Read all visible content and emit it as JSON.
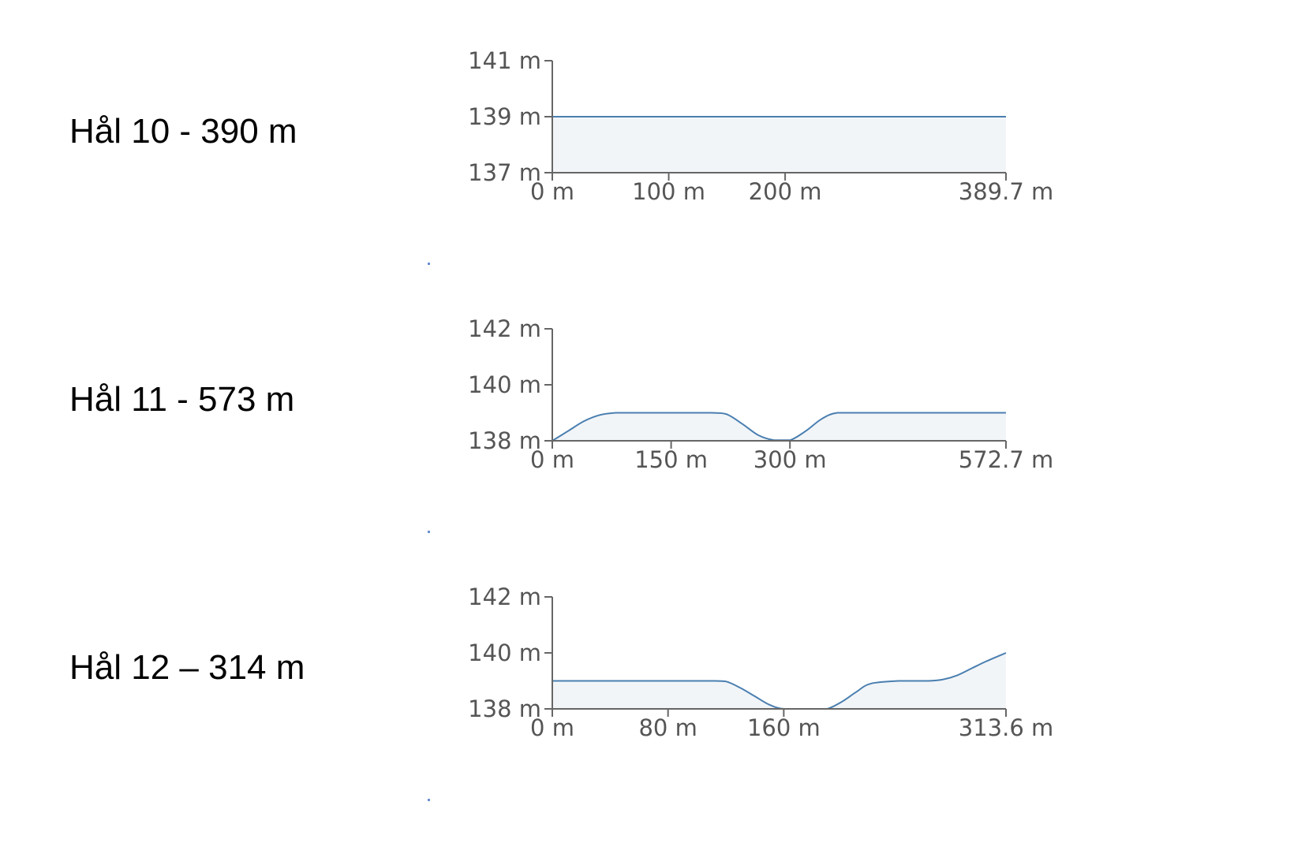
{
  "holes": [
    {
      "label": "Hål 10 - 390 m",
      "chart_data": {
        "type": "area",
        "x": [
          0,
          389.7
        ],
        "y": [
          139,
          139
        ],
        "ylim": [
          137,
          141
        ],
        "yticks": [
          137,
          139,
          141
        ],
        "ytick_labels": [
          "137 m",
          "139 m",
          "141 m"
        ],
        "xlim": [
          0,
          389.7
        ],
        "xticks": [
          0,
          100,
          200,
          389.7
        ],
        "xtick_labels": [
          "0 m",
          "100 m",
          "200 m",
          "389.7 m"
        ],
        "line_color": "#4a7fb0",
        "fill_color": "#f2f5f8"
      }
    },
    {
      "label": "Hål 11 - 573 m",
      "chart_data": {
        "type": "area",
        "x": [
          0,
          20,
          40,
          60,
          80,
          100,
          150,
          200,
          220,
          240,
          260,
          280,
          300,
          320,
          340,
          360,
          400,
          450,
          500,
          572.7
        ],
        "y": [
          138,
          138.35,
          138.7,
          138.92,
          139,
          139,
          139,
          139,
          138.95,
          138.6,
          138.2,
          138.02,
          138.02,
          138.35,
          138.78,
          139,
          139,
          139,
          139,
          139
        ],
        "ylim": [
          138,
          142
        ],
        "yticks": [
          138,
          140,
          142
        ],
        "ytick_labels": [
          "138 m",
          "140 m",
          "142 m"
        ],
        "xlim": [
          0,
          572.7
        ],
        "xticks": [
          0,
          150,
          300,
          572.7
        ],
        "xtick_labels": [
          "0 m",
          "150 m",
          "300 m",
          "572.7 m"
        ],
        "line_color": "#4a7fb0",
        "fill_color": "#f2f5f8"
      }
    },
    {
      "label": "Hål 12 – 314 m",
      "chart_data": {
        "type": "area",
        "x": [
          0,
          40,
          80,
          110,
          120,
          130,
          140,
          150,
          160,
          180,
          190,
          200,
          210,
          220,
          240,
          260,
          270,
          280,
          290,
          300,
          313.6
        ],
        "y": [
          139,
          139,
          139,
          139,
          138.98,
          138.75,
          138.45,
          138.15,
          138,
          138,
          138,
          138.25,
          138.6,
          138.9,
          139,
          139,
          139.05,
          139.2,
          139.45,
          139.7,
          140
        ],
        "ylim": [
          138,
          142
        ],
        "yticks": [
          138,
          140,
          142
        ],
        "ytick_labels": [
          "138 m",
          "140 m",
          "142 m"
        ],
        "xlim": [
          0,
          313.6
        ],
        "xticks": [
          0,
          80,
          160,
          313.6
        ],
        "xtick_labels": [
          "0 m",
          "80 m",
          "160 m",
          "313.6 m"
        ],
        "line_color": "#4a7fb0",
        "fill_color": "#f2f5f8"
      }
    }
  ]
}
